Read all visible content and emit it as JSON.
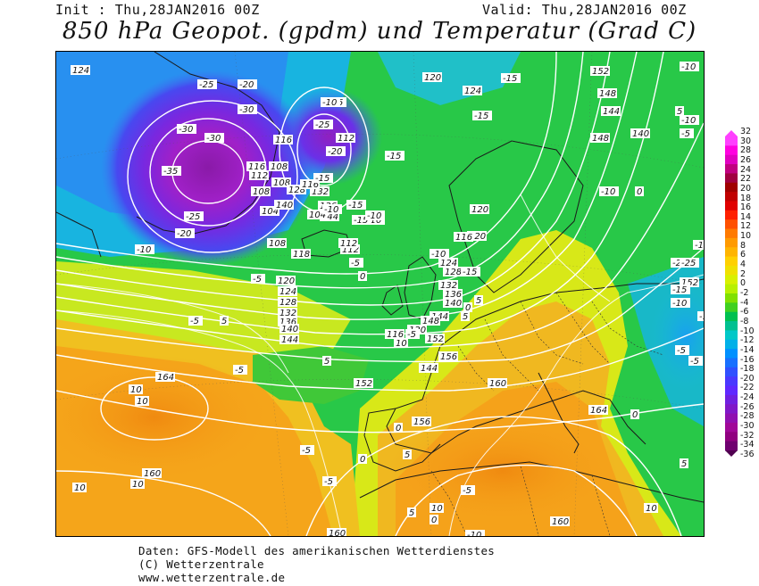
{
  "header": {
    "init": "Init : Thu,28JAN2016 00Z",
    "valid": "Valid: Thu,28JAN2016 00Z",
    "title": "850 hPa Geopot. (gpdm) und Temperatur (Grad C)"
  },
  "legend": {
    "labels": [
      "32",
      "30",
      "28",
      "26",
      "24",
      "22",
      "20",
      "18",
      "16",
      "14",
      "12",
      "10",
      "8",
      "6",
      "4",
      "2",
      "0",
      "-2",
      "-4",
      "-6",
      "-8",
      "-10",
      "-12",
      "-14",
      "-16",
      "-18",
      "-20",
      "-22",
      "-24",
      "-26",
      "-28",
      "-30",
      "-32",
      "-34",
      "-36"
    ],
    "colors": [
      "#ff40ff",
      "#ff00e0",
      "#e000c0",
      "#c00080",
      "#a00040",
      "#a00000",
      "#c00000",
      "#e00000",
      "#ff2000",
      "#ff5000",
      "#ff7a00",
      "#ff9a00",
      "#ffb400",
      "#ffd000",
      "#f0e000",
      "#d8f000",
      "#b8f000",
      "#80e000",
      "#40d020",
      "#00c050",
      "#00c090",
      "#00c8c8",
      "#00b0e8",
      "#0090ff",
      "#1870ff",
      "#3050ff",
      "#4a38ff",
      "#6028ff",
      "#7020e0",
      "#8018c8",
      "#9010b0",
      "#a00898",
      "#900080",
      "#700070",
      "#500050"
    ]
  },
  "map": {
    "geopotential_labels": [
      "124",
      "116",
      "112",
      "108",
      "104",
      "108",
      "120",
      "124",
      "128",
      "132",
      "136",
      "140",
      "144",
      "148",
      "152",
      "156",
      "160",
      "164",
      "116",
      "120",
      "118",
      "112",
      "124",
      "128",
      "132",
      "136",
      "140",
      "144",
      "148",
      "152",
      "156",
      "160",
      "164",
      "120",
      "152",
      "148",
      "144",
      "140",
      "152",
      "160",
      "108",
      "112",
      "116",
      "120",
      "124",
      "128",
      "132",
      "136",
      "140",
      "144",
      "120",
      "116",
      "112",
      "108",
      "104",
      "116",
      "144",
      "160"
    ],
    "temperature_labels": [
      "-25",
      "-30",
      "-30",
      "-30",
      "-35",
      "-25",
      "-20",
      "-20",
      "-15",
      "-25",
      "-25",
      "-20",
      "-15",
      "-10",
      "-10",
      "-15",
      "-15",
      "-15",
      "-10",
      "-10",
      "-5",
      "-5",
      "-5",
      "0",
      "5",
      "5",
      "10",
      "10",
      "10",
      "10",
      "10",
      "-5",
      "0",
      "5",
      "-5",
      "5",
      "10",
      "0",
      "-10",
      "-15",
      "-10",
      "-5",
      "5",
      "0",
      "-5",
      "-10",
      "-5",
      "5",
      "-10",
      "-5",
      "0",
      "-15",
      "-10",
      "-10",
      "-5",
      "0",
      "5",
      "10",
      "-5",
      "-10",
      "-15",
      "-20",
      "-25",
      "-10",
      "-15",
      "-10",
      "0",
      "5"
    ]
  },
  "footer": {
    "line1": "Daten: GFS-Modell des amerikanischen Wetterdienstes",
    "line2": "(C) Wetterzentrale",
    "line3": "www.wetterzentrale.de"
  }
}
